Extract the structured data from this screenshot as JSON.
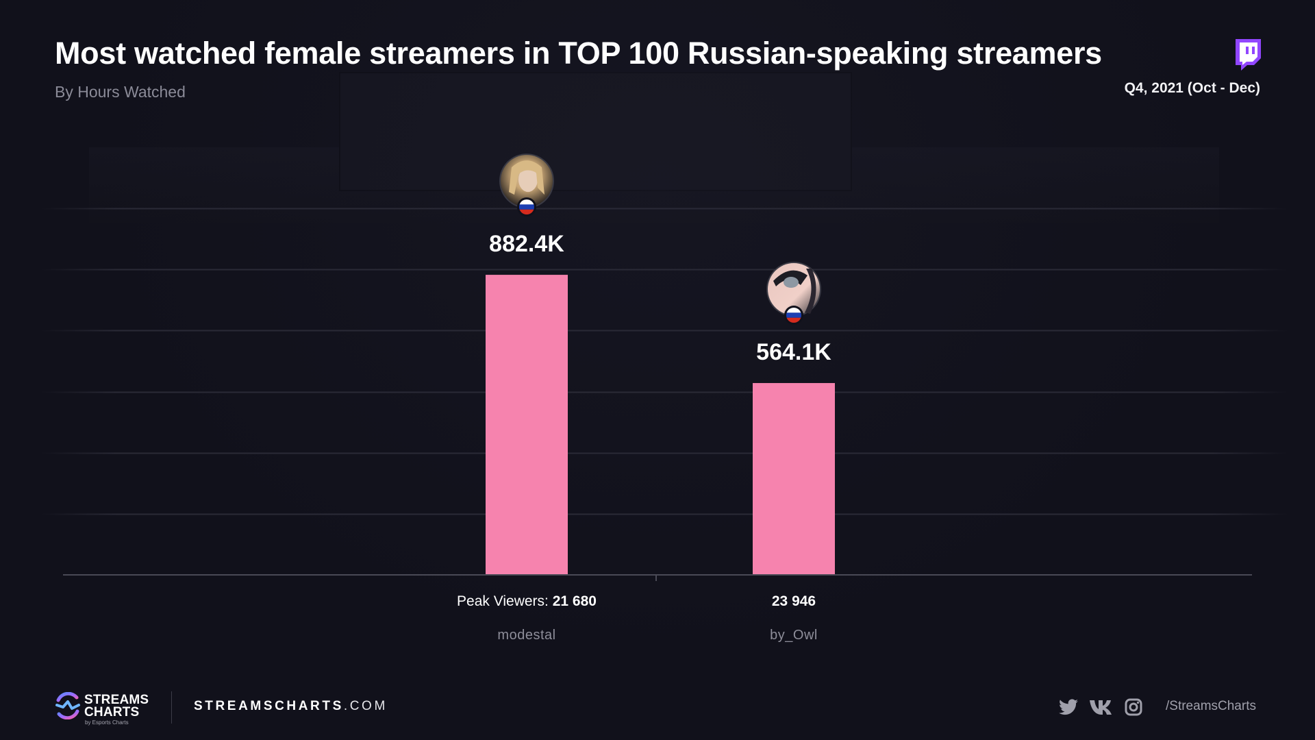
{
  "header": {
    "title": "Most watched female streamers in TOP 100 Russian-speaking streamers",
    "subtitle": "By Hours Watched",
    "period": "Q4, 2021 (Oct - Dec)",
    "platform_icon": "twitch-icon"
  },
  "colors": {
    "bar": "#f683ae",
    "background": "#11111b",
    "twitch": "#9146ff",
    "axis": "#4a4a56",
    "grid": "#23232e"
  },
  "chart_data": {
    "type": "bar",
    "title": "Most watched female streamers in TOP 100 Russian-speaking streamers",
    "subtitle": "By Hours Watched",
    "xlabel": "",
    "ylabel": "Hours Watched",
    "categories": [
      "modestal",
      "by_Owl"
    ],
    "values": [
      882400,
      564100
    ],
    "value_labels": [
      "882.4K",
      "564.1K"
    ],
    "peak_viewers_label": "Peak Viewers:",
    "peak_viewers": [
      "21 680",
      "23 946"
    ],
    "countries": [
      "Russia",
      "Russia"
    ],
    "ylim": [
      0,
      1078000
    ],
    "grid": true,
    "y_ticks_visible": false,
    "legend": "none"
  },
  "footer": {
    "logo_line1": "STREAMS",
    "logo_line2": "CHARTS",
    "logo_by": "by Esports Charts",
    "site_bold": "STREAMSCHARTS",
    "site_light": ".COM",
    "social_icons": [
      "twitter-icon",
      "vk-icon",
      "instagram-icon"
    ],
    "social_handle": "/StreamsCharts"
  }
}
